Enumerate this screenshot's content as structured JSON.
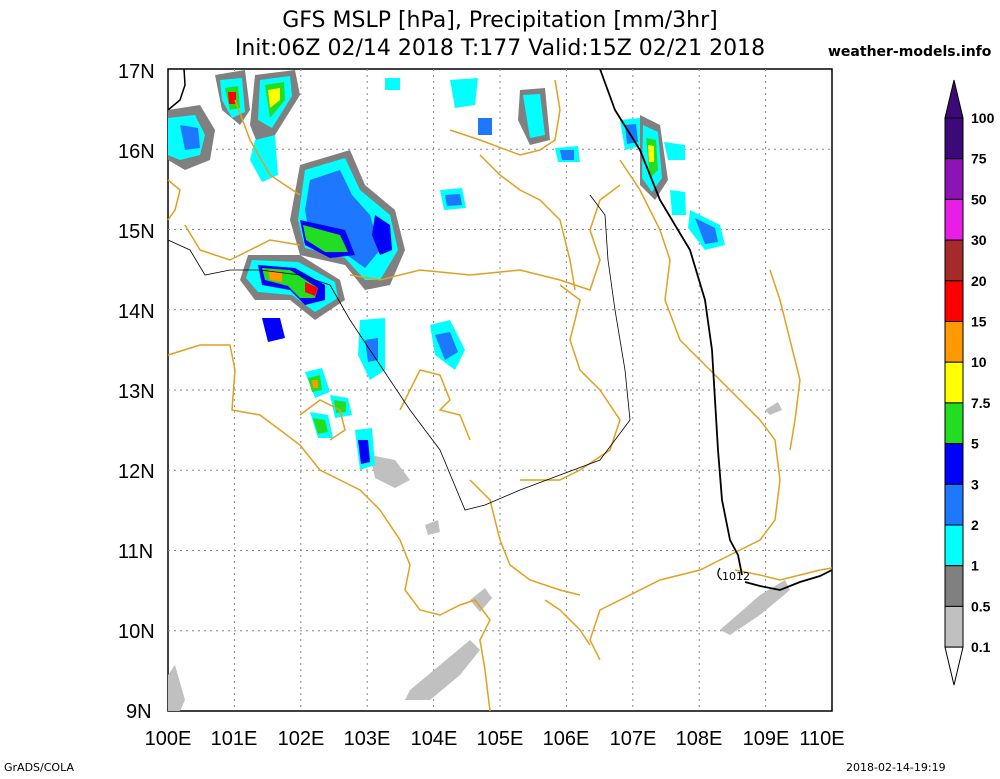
{
  "header": {
    "title_line1": "GFS MSLP [hPa], Precipitation [mm/3hr]",
    "title_line2": "Init:06Z 02/14 2018 T:177 Valid:15Z 02/21 2018",
    "site": "weather-models.info"
  },
  "map": {
    "lat_labels": [
      "17N",
      "16N",
      "15N",
      "14N",
      "13N",
      "12N",
      "11N",
      "10N",
      "9N"
    ],
    "lon_labels": [
      "100E",
      "101E",
      "102E",
      "103E",
      "104E",
      "105E",
      "106E",
      "107E",
      "108E",
      "109E",
      "110E"
    ],
    "isobar_label": "1012",
    "coast_color": "#e0a020"
  },
  "colorbar": {
    "levels": [
      {
        "label": "100",
        "color": "#3c0a78"
      },
      {
        "label": "75",
        "color": "#8c14b4"
      },
      {
        "label": "50",
        "color": "#e61ee6"
      },
      {
        "label": "30",
        "color": "#a52a2a"
      },
      {
        "label": "20",
        "color": "#ff0000"
      },
      {
        "label": "15",
        "color": "#ff9900"
      },
      {
        "label": "10",
        "color": "#ffff00"
      },
      {
        "label": "7.5",
        "color": "#22dd22"
      },
      {
        "label": "5",
        "color": "#0000ff"
      },
      {
        "label": "3",
        "color": "#1e78ff"
      },
      {
        "label": "2",
        "color": "#00ffff"
      },
      {
        "label": "1",
        "color": "#808080"
      },
      {
        "label": "0.5",
        "color": "#c0c0c0"
      },
      {
        "label": "0.1",
        "color": "#ffffff"
      }
    ]
  },
  "footer": {
    "left": "GrADS/COLA",
    "right": "2018-02-14-19:19"
  }
}
